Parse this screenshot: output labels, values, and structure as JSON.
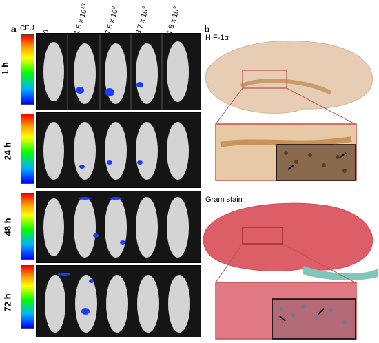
{
  "panel_a": {
    "letter": "a",
    "cfu_label": "CFU",
    "doses": [
      "0",
      "1.5 x 10",
      "7.5 x 10",
      "3.7 x 10",
      "1.8 x 10"
    ],
    "dose_exponents": [
      "",
      "10",
      "9",
      "9",
      "9"
    ],
    "times": [
      "1 h",
      "24 h",
      "48 h",
      "72 h"
    ]
  },
  "panel_b": {
    "letter": "b",
    "stain_top": "HIF-1α",
    "stain_bottom": "Gram stain"
  },
  "colors": {
    "hif_tissue": "#d9b48f",
    "gram_tissue": "#d8575f",
    "inset_border": "#c0504d",
    "signal_blue": "#1a3cff"
  }
}
